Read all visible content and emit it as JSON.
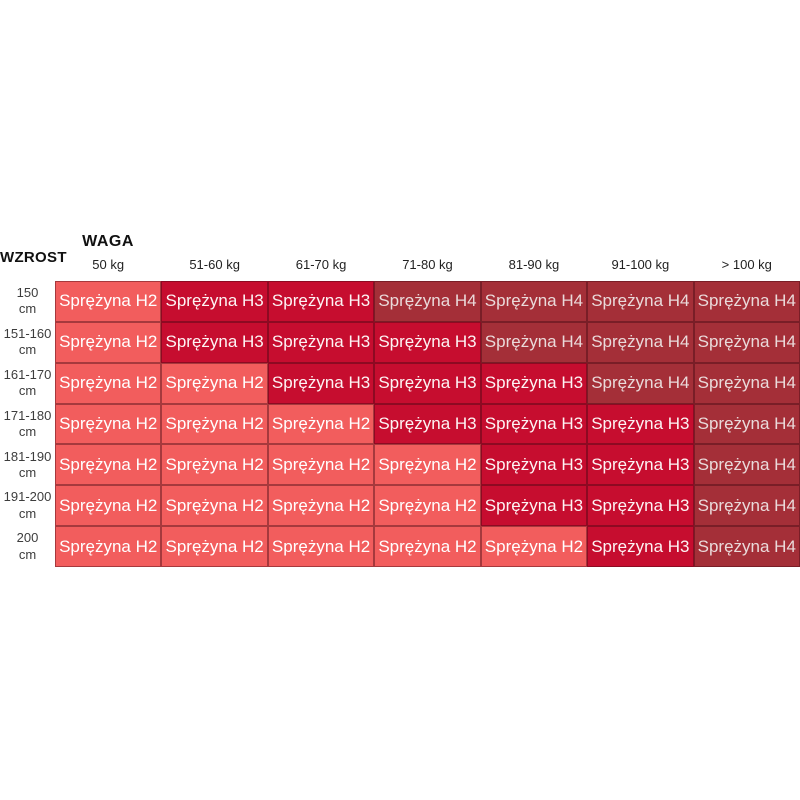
{
  "header": {
    "weight_axis_label": "WAGA",
    "height_axis_label": "WZROST"
  },
  "row_headers": [
    {
      "value": "150",
      "unit": "cm"
    },
    {
      "value": "151-160",
      "unit": "cm"
    },
    {
      "value": "161-170",
      "unit": "cm"
    },
    {
      "value": "171-180",
      "unit": "cm"
    },
    {
      "value": "181-190",
      "unit": "cm"
    },
    {
      "value": "191-200",
      "unit": "cm"
    },
    {
      "value": "200",
      "unit": "cm"
    }
  ],
  "chart_data": {
    "type": "heatmap",
    "title": "",
    "xlabel": "WAGA",
    "ylabel": "WZROST",
    "x_categories": [
      "50 kg",
      "51-60 kg",
      "61-70 kg",
      "71-80 kg",
      "81-90 kg",
      "91-100 kg",
      "> 100 kg"
    ],
    "y_categories": [
      "150 cm",
      "151-160 cm",
      "161-170 cm",
      "171-180 cm",
      "181-190 cm",
      "191-200 cm",
      "200 cm"
    ],
    "cells": [
      [
        "Sprężyna H2",
        "Sprężyna H3",
        "Sprężyna H3",
        "Sprężyna H4",
        "Sprężyna H4",
        "Sprężyna H4",
        "Sprężyna H4"
      ],
      [
        "Sprężyna H2",
        "Sprężyna H3",
        "Sprężyna H3",
        "Sprężyna H3",
        "Sprężyna H4",
        "Sprężyna H4",
        "Sprężyna H4"
      ],
      [
        "Sprężyna H2",
        "Sprężyna H2",
        "Sprężyna H3",
        "Sprężyna H3",
        "Sprężyna H3",
        "Sprężyna H4",
        "Sprężyna H4"
      ],
      [
        "Sprężyna H2",
        "Sprężyna H2",
        "Sprężyna H2",
        "Sprężyna H3",
        "Sprężyna H3",
        "Sprężyna H3",
        "Sprężyna H4"
      ],
      [
        "Sprężyna H2",
        "Sprężyna H2",
        "Sprężyna H2",
        "Sprężyna H2",
        "Sprężyna H3",
        "Sprężyna H3",
        "Sprężyna H4"
      ],
      [
        "Sprężyna H2",
        "Sprężyna H2",
        "Sprężyna H2",
        "Sprężyna H2",
        "Sprężyna H3",
        "Sprężyna H3",
        "Sprężyna H4"
      ],
      [
        "Sprężyna H2",
        "Sprężyna H2",
        "Sprężyna H2",
        "Sprężyna H2",
        "Sprężyna H2",
        "Sprężyna H3",
        "Sprężyna H4"
      ]
    ],
    "levels": [
      [
        "H2",
        "H3",
        "H3",
        "H4",
        "H4",
        "H4",
        "H4"
      ],
      [
        "H2",
        "H3",
        "H3",
        "H3",
        "H4",
        "H4",
        "H4"
      ],
      [
        "H2",
        "H2",
        "H3",
        "H3",
        "H3",
        "H4",
        "H4"
      ],
      [
        "H2",
        "H2",
        "H2",
        "H3",
        "H3",
        "H3",
        "H4"
      ],
      [
        "H2",
        "H2",
        "H2",
        "H2",
        "H3",
        "H3",
        "H4"
      ],
      [
        "H2",
        "H2",
        "H2",
        "H2",
        "H3",
        "H3",
        "H4"
      ],
      [
        "H2",
        "H2",
        "H2",
        "H2",
        "H2",
        "H3",
        "H4"
      ]
    ],
    "level_colors": {
      "H2": "#F25D5D",
      "H3": "#C60D2F",
      "H4": "#A42F38"
    },
    "level_text_colors": {
      "H2": "#FFFFFF",
      "H3": "#FDF4F4",
      "H4": "#EADADA"
    },
    "legend_position": "none",
    "grid": true
  }
}
